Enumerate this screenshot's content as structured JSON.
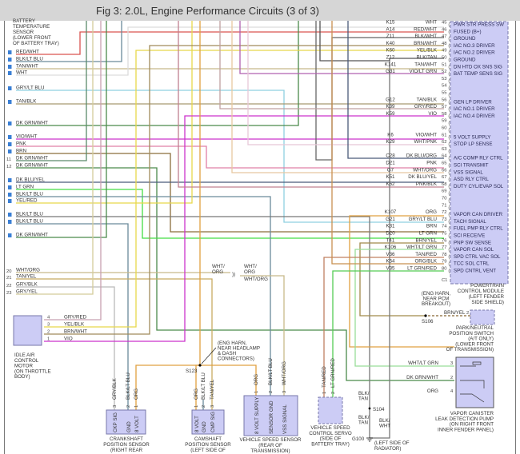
{
  "header": {
    "title": "Fig 3: 2.0L, Engine Performance Circuits (3 of 3)"
  },
  "battery_temp_sensor": {
    "label": [
      "BATTERY",
      "TEMPERATURE",
      "SENSOR",
      "(LOWER FRONT",
      "OF BATTERY TRAY)"
    ]
  },
  "left_connector": {
    "rows": [
      {
        "pin": "1",
        "label": "RED/WHT"
      },
      {
        "pin": "2",
        "label": "BLK/LT BLU"
      },
      {
        "pin": "3",
        "label": "TAN/WHT"
      },
      {
        "pin": "4",
        "label": "WHT"
      },
      {
        "pin": "5",
        "label": "GRY/LT BLU"
      },
      {
        "pin": "6",
        "label": "TAN/BLK"
      },
      {
        "pin": "7",
        "label": "DK GRN/WHT"
      },
      {
        "pin": "8",
        "label": "VIO/WHT"
      },
      {
        "pin": "9",
        "label": "PNK"
      },
      {
        "pin": "10",
        "label": "BRN"
      },
      {
        "pin": "11",
        "label": "DK GRN/WHT"
      },
      {
        "pin": "12",
        "label": "DK GRN/WHT"
      },
      {
        "pin": "13",
        "label": "DK BLU/YEL"
      },
      {
        "pin": "14",
        "label": "LT GRN"
      },
      {
        "pin": "15",
        "label": "BLK/LT BLU"
      },
      {
        "pin": "16",
        "label": "YEL/RED"
      },
      {
        "pin": "17",
        "label": "BLK/LT BLU"
      },
      {
        "pin": "18",
        "label": "BLK/LT BLU"
      },
      {
        "pin": "19",
        "label": "DK GRN/WHT"
      },
      {
        "pin": "20",
        "label": "WHT/ORG"
      },
      {
        "pin": "21",
        "label": "TAN/YEL"
      },
      {
        "pin": "22",
        "label": "GRY/BLK"
      },
      {
        "pin": "23",
        "label": "GRY/YEL"
      }
    ]
  },
  "pcm": {
    "connector": "C1",
    "label": [
      "POWERTRAIN",
      "CONTROL MODULE",
      "(LEFT FENDER",
      "SIDE SHIELD)"
    ],
    "pins": [
      {
        "pin": "45",
        "circuit": "K15",
        "color": "WHT",
        "function": "PWR STR PRESS SW"
      },
      {
        "pin": "46",
        "circuit": "A14",
        "color": "RED/WHT",
        "function": "FUSED (B+)"
      },
      {
        "pin": "47",
        "circuit": "Z11",
        "color": "BLK/WHT",
        "function": "GROUND"
      },
      {
        "pin": "48",
        "circuit": "K40",
        "color": "BRN/WHT",
        "function": "IAC NO.3 DRIVER"
      },
      {
        "pin": "49",
        "circuit": "K60",
        "color": "YEL/BLK",
        "function": "IAC NO.2 DRIVER"
      },
      {
        "pin": "50",
        "circuit": "Z12",
        "color": "BLK/TAN",
        "function": "GROUND"
      },
      {
        "pin": "51",
        "circuit": "K141",
        "color": "TAN/WHT",
        "function": "DN HTD OX SNS SIG"
      },
      {
        "pin": "52",
        "circuit": "G31",
        "color": "VIO/LT GRN",
        "function": "BAT TEMP SENS SIG"
      },
      {
        "pin": "53",
        "circuit": "",
        "color": "",
        "function": ""
      },
      {
        "pin": "54",
        "circuit": "",
        "color": "",
        "function": ""
      },
      {
        "pin": "55",
        "circuit": "",
        "color": "",
        "function": ""
      },
      {
        "pin": "56",
        "circuit": "G12",
        "color": "TAN/BLK",
        "function": "GEN LP DRIVER"
      },
      {
        "pin": "57",
        "circuit": "K39",
        "color": "GRY/RED",
        "function": "IAC NO.1 DRIVER"
      },
      {
        "pin": "58",
        "circuit": "K59",
        "color": "VIO",
        "function": "IAC NO.4 DRIVER"
      },
      {
        "pin": "59",
        "circuit": "",
        "color": "",
        "function": ""
      },
      {
        "pin": "60",
        "circuit": "",
        "color": "",
        "function": ""
      },
      {
        "pin": "61",
        "circuit": "K6",
        "color": "VIO/WHT",
        "function": "5 VOLT SUPPLY"
      },
      {
        "pin": "62",
        "circuit": "K29",
        "color": "WHT/PNK",
        "function": "STOP LP SENSE"
      },
      {
        "pin": "63",
        "circuit": "",
        "color": "",
        "function": ""
      },
      {
        "pin": "64",
        "circuit": "C28",
        "color": "DK BLU/ORG",
        "function": "A/C COMP RLY CTRL"
      },
      {
        "pin": "65",
        "circuit": "D21",
        "color": "PNK",
        "function": "SCI TRANSMIT"
      },
      {
        "pin": "66",
        "circuit": "G7",
        "color": "WHT/ORG",
        "function": "VSS SIGNAL"
      },
      {
        "pin": "67",
        "circuit": "K51",
        "color": "DK BLU/YEL",
        "function": "ASD RLY CTRL"
      },
      {
        "pin": "68",
        "circuit": "K52",
        "color": "PNK/BLK",
        "function": "DUTY CYL/EVAP SOL"
      },
      {
        "pin": "69",
        "circuit": "",
        "color": "",
        "function": ""
      },
      {
        "pin": "70",
        "circuit": "",
        "color": "",
        "function": ""
      },
      {
        "pin": "71",
        "circuit": "",
        "color": "",
        "function": ""
      },
      {
        "pin": "72",
        "circuit": "K107",
        "color": "ORG",
        "function": "VAPOR CAN DRIVER"
      },
      {
        "pin": "73",
        "circuit": "G21",
        "color": "GRY/LT BLU",
        "function": "TACH SIGNAL"
      },
      {
        "pin": "74",
        "circuit": "K31",
        "color": "BRN",
        "function": "FUEL PMP RLY CTRL"
      },
      {
        "pin": "75",
        "circuit": "D20",
        "color": "LT GRN",
        "function": "SCI RECEIVE"
      },
      {
        "pin": "76",
        "circuit": "T41",
        "color": "BRN/YEL",
        "function": "PNP SW SENSE"
      },
      {
        "pin": "77",
        "circuit": "K106",
        "color": "WHT/LT GRN",
        "function": "VAPOR CAN SOL"
      },
      {
        "pin": "78",
        "circuit": "V36",
        "color": "TAN/RED",
        "function": "SPD CTRL VAC SOL"
      },
      {
        "pin": "79",
        "circuit": "K54",
        "color": "ORG/BLK",
        "function": "TCC SOL CTRL"
      },
      {
        "pin": "80",
        "circuit": "V35",
        "color": "LT GRN/RED",
        "function": "SPD CNTRL VENT"
      }
    ]
  },
  "iac_motor": {
    "label": [
      "IDLE AIR",
      "CONTROL",
      "MOTOR",
      "(ON THROTTLE",
      "BODY)"
    ],
    "pins": [
      {
        "pin": "4",
        "color": "GRY/RED"
      },
      {
        "pin": "3",
        "color": "YEL/BLK"
      },
      {
        "pin": "2",
        "color": "BRN/WHT"
      },
      {
        "pin": "1",
        "color": "VIO"
      }
    ]
  },
  "inline_connector": {
    "left": [
      "WHT/",
      "ORG"
    ],
    "right": [
      "WHT/",
      "ORG"
    ],
    "wire": "WHT/ORG"
  },
  "splice_s123": {
    "id": "S123",
    "note": [
      "(ENG HARN,",
      "NEAR HEADLAMP",
      "& DASH",
      "CONNECTORS)"
    ]
  },
  "splice_s106": {
    "id": "S106",
    "note": [
      "(ENG HARN,",
      "NEAR PCM",
      "BREAKOUT)"
    ],
    "wire": "BRN/YEL",
    "pin": "2"
  },
  "splice_s104": {
    "id": "S104",
    "upper_wire": [
      "BLK/",
      "TAN"
    ],
    "lower_wire": [
      "BLK/",
      "TAN"
    ],
    "ground_wire": [
      "BLK/",
      "WHT"
    ]
  },
  "ground_g100": {
    "id": "G100",
    "note": [
      "(LEFT SIDE OF",
      "RADIATOR)"
    ]
  },
  "crankshaft_sensor": {
    "label": [
      "CRANKSHAFT",
      "POSITION SENSOR",
      "(RIGHT REAR"
    ],
    "pins": [
      {
        "pin": "3",
        "color": "GRY/BLK",
        "function": "CKP SIG"
      },
      {
        "pin": "2",
        "color": "BLK/LT BLU",
        "function": "GND"
      },
      {
        "pin": "1",
        "color": "ORG",
        "function": "8 VOLT"
      }
    ]
  },
  "camshaft_sensor": {
    "label": [
      "CAMSHAFT",
      "POSITION SENSOR",
      "(LEFT SIDE OF"
    ],
    "pins": [
      {
        "pin": "1",
        "color": "ORG",
        "function": "8 VOLT"
      },
      {
        "pin": "2",
        "color": "BLK/LT BLU",
        "function": "GND"
      },
      {
        "pin": "3",
        "color": "TAN/YEL",
        "function": "CMP SIG"
      }
    ]
  },
  "vehicle_speed_sensor": {
    "label": [
      "VEHICLE SPEED SENSOR",
      "(REAR OF",
      "TRANSMISSION)"
    ],
    "pins": [
      {
        "pin": "1",
        "color": "ORG",
        "function": "8 VOLT SUPPLY"
      },
      {
        "pin": "2",
        "color": "BLK/LT BLU",
        "function": "SENSOR GND"
      },
      {
        "pin": "3",
        "color": "WHT/ORG",
        "function": "VSS SIGNAL"
      }
    ]
  },
  "speed_control_servo": {
    "label": [
      "VEHICLE SPEED",
      "CONTROL SERVO",
      "(SIDE OF",
      "BATTERY TRAY)"
    ],
    "pins": [
      {
        "pin": "1",
        "color": "TAN/RED"
      },
      {
        "pin": "2",
        "color": "LT GRN/RED"
      }
    ]
  },
  "park_neutral_switch": {
    "label": [
      "PARK/NEUTRAL",
      "POSITION SWITCH",
      "(A/T ONLY)",
      "(LOWER FRONT",
      "OF TRANSMISSION)"
    ]
  },
  "vapor_canister_pump": {
    "label": [
      "VAPOR CANISTER",
      "LEAK DETECTION PUMP",
      "(ON RIGHT FRONT",
      "INNER FENDER PANEL)"
    ],
    "pins": [
      {
        "pin": "3",
        "color": "WHT/LT GRN"
      },
      {
        "pin": "2",
        "color": "DK GRN/WHT"
      },
      {
        "pin": "4",
        "color": "ORG"
      }
    ]
  },
  "wire_colors": {
    "RED": "#d9534f",
    "BLK": "#555555",
    "TAN": "#c8b98a",
    "WHT": "#dcdcdc",
    "GRY": "#9a9a9a",
    "LT BLU": "#8fd0e0",
    "DK GRN": "#4a8a4a",
    "VIO": "#cc33cc",
    "PNK": "#e080a8",
    "BRN": "#8a6d3b",
    "DK BLU": "#4a5a7a",
    "LT GRN": "#44dd44",
    "YEL": "#e8d84a",
    "ORG": "#e0a040"
  },
  "colors": {
    "component_fill": "#ccccf5",
    "component_border": "#7777aa",
    "pin_badge": "#3a7fd5",
    "header_bg": "#d6d6d6"
  }
}
